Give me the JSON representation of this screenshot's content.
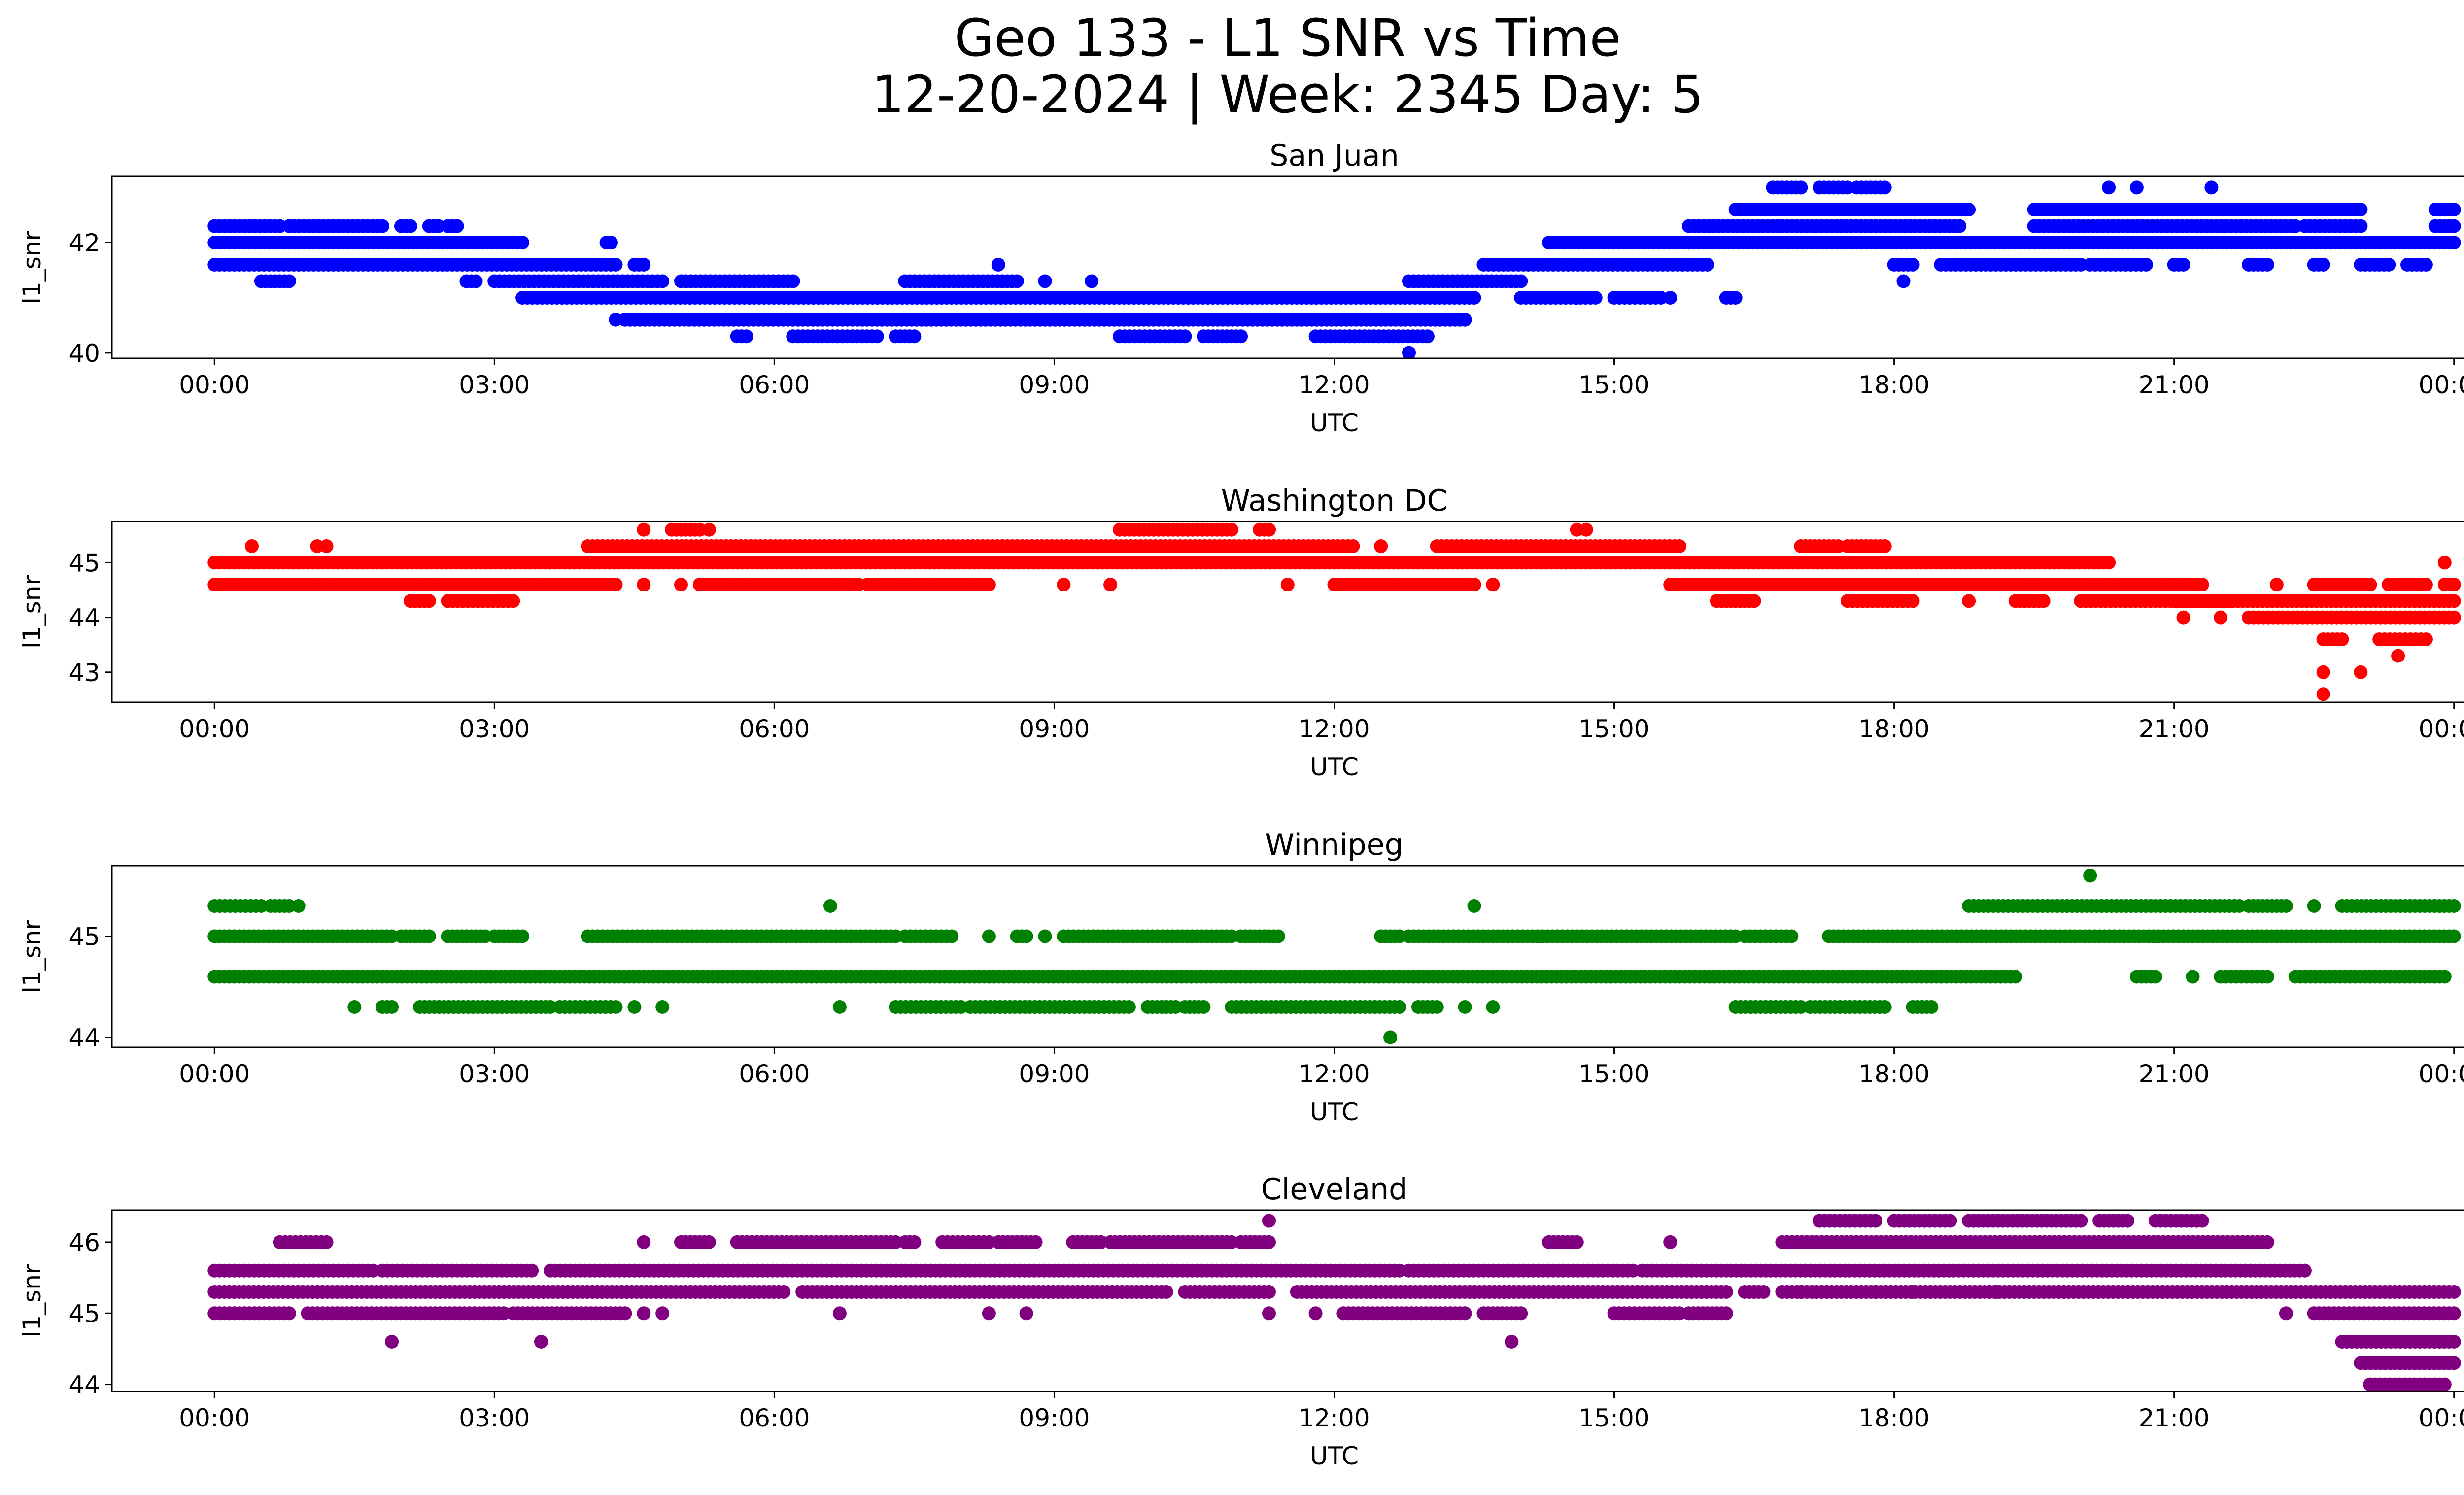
{
  "figure": {
    "title_line_1": "Geo 133 - L1 SNR vs Time",
    "title_line_2": "12-20-2024 | Week: 2345 Day: 5"
  },
  "chart_data": [
    {
      "type": "scatter",
      "title": "San Juan",
      "xlabel": "UTC",
      "ylabel": "l1_snr",
      "color": "#0000ff",
      "xlim": [
        -1.1,
        25.1
      ],
      "ylim": [
        39.9,
        43.2
      ],
      "xticks": [
        0,
        3,
        6,
        9,
        12,
        15,
        18,
        21,
        24
      ],
      "xtick_labels": [
        "00:00",
        "03:00",
        "06:00",
        "09:00",
        "12:00",
        "15:00",
        "18:00",
        "21:00",
        "00:00"
      ],
      "yticks": [
        40,
        42
      ],
      "ytick_labels": [
        "40",
        "42"
      ],
      "bands": [
        {
          "y": 42.3,
          "segments": [
            [
              0.0,
              0.7
            ],
            [
              0.8,
              1.8
            ],
            [
              2.0,
              2.1
            ],
            [
              2.3,
              2.4
            ],
            [
              2.5,
              2.6
            ]
          ]
        },
        {
          "y": 42.0,
          "segments": [
            [
              0.0,
              3.3
            ],
            [
              4.2,
              4.25
            ],
            [
              14.3,
              15.8
            ]
          ]
        },
        {
          "y": 41.6,
          "segments": [
            [
              0.0,
              4.3
            ],
            [
              4.5,
              4.6
            ],
            [
              13.6,
              16.0
            ]
          ]
        },
        {
          "y": 41.3,
          "segments": [
            [
              0.5,
              0.8
            ],
            [
              2.7,
              2.8
            ],
            [
              3.0,
              4.8
            ],
            [
              5.0,
              6.2
            ],
            [
              7.4,
              8.6
            ],
            [
              12.8,
              14.0
            ]
          ]
        },
        {
          "y": 41.0,
          "segments": [
            [
              3.3,
              13.5
            ],
            [
              14.0,
              14.8
            ],
            [
              15.0,
              15.5
            ],
            [
              16.2,
              16.3
            ]
          ]
        },
        {
          "y": 40.6,
          "segments": [
            [
              4.4,
              13.4
            ]
          ]
        },
        {
          "y": 40.3,
          "segments": [
            [
              5.6,
              5.7
            ],
            [
              6.2,
              7.1
            ],
            [
              7.3,
              7.5
            ],
            [
              9.7,
              10.4
            ],
            [
              10.6,
              11.0
            ],
            [
              11.8,
              13.0
            ]
          ]
        },
        {
          "y": 42.3,
          "segments": [
            [
              15.8,
              18.7
            ],
            [
              19.5,
              22.3
            ],
            [
              22.4,
              23.0
            ],
            [
              23.8,
              24.0
            ]
          ]
        },
        {
          "y": 42.0,
          "segments": [
            [
              15.8,
              24.0
            ]
          ]
        },
        {
          "y": 42.6,
          "segments": [
            [
              16.3,
              18.8
            ],
            [
              19.5,
              23.0
            ],
            [
              23.8,
              24.0
            ]
          ]
        },
        {
          "y": 43.0,
          "segments": [
            [
              16.7,
              17.0
            ],
            [
              17.2,
              17.5
            ],
            [
              17.6,
              17.9
            ]
          ]
        },
        {
          "y": 41.6,
          "segments": [
            [
              18.0,
              18.2
            ],
            [
              18.5,
              20.0
            ],
            [
              20.1,
              20.7
            ],
            [
              21.0,
              21.1
            ],
            [
              21.8,
              22.0
            ],
            [
              22.5,
              22.6
            ],
            [
              23.0,
              23.3
            ],
            [
              23.5,
              23.7
            ]
          ]
        }
      ],
      "points": [
        {
          "x": 8.4,
          "y": 41.6
        },
        {
          "x": 18.1,
          "y": 41.3
        },
        {
          "x": 15.6,
          "y": 41.0
        },
        {
          "x": 17.0,
          "y": 43.0
        },
        {
          "x": 20.3,
          "y": 43.0
        },
        {
          "x": 20.6,
          "y": 43.0
        },
        {
          "x": 21.4,
          "y": 43.0
        },
        {
          "x": 12.8,
          "y": 40.0
        },
        {
          "x": 4.3,
          "y": 40.6
        },
        {
          "x": 8.9,
          "y": 41.3
        },
        {
          "x": 9.4,
          "y": 41.3
        },
        {
          "x": 14.6,
          "y": 41.0
        }
      ]
    },
    {
      "type": "scatter",
      "title": "Washington DC",
      "xlabel": "UTC",
      "ylabel": "l1_snr",
      "color": "#ff0000",
      "xlim": [
        -1.1,
        25.1
      ],
      "ylim": [
        42.45,
        45.75
      ],
      "xticks": [
        0,
        3,
        6,
        9,
        12,
        15,
        18,
        21,
        24
      ],
      "xtick_labels": [
        "00:00",
        "03:00",
        "06:00",
        "09:00",
        "12:00",
        "15:00",
        "18:00",
        "21:00",
        "00:00"
      ],
      "yticks": [
        43,
        44,
        45
      ],
      "ytick_labels": [
        "43",
        "44",
        "45"
      ],
      "bands": [
        {
          "y": 45.0,
          "segments": [
            [
              0.0,
              20.3
            ]
          ]
        },
        {
          "y": 44.6,
          "segments": [
            [
              0.0,
              4.3
            ],
            [
              5.2,
              6.9
            ],
            [
              7.0,
              8.3
            ],
            [
              12.0,
              13.5
            ],
            [
              15.6,
              21.3
            ]
          ]
        },
        {
          "y": 45.3,
          "segments": [
            [
              4.0,
              12.2
            ],
            [
              13.1,
              15.7
            ],
            [
              17.0,
              17.4
            ],
            [
              17.5,
              17.9
            ]
          ]
        },
        {
          "y": 45.6,
          "segments": [
            [
              4.9,
              5.2
            ],
            [
              9.7,
              10.9
            ],
            [
              11.2,
              11.3
            ]
          ]
        },
        {
          "y": 44.3,
          "segments": [
            [
              2.1,
              2.3
            ],
            [
              2.5,
              3.2
            ],
            [
              16.1,
              16.5
            ],
            [
              17.5,
              18.2
            ],
            [
              19.3,
              19.6
            ],
            [
              20.0,
              21.6
            ]
          ]
        },
        {
          "y": 44.3,
          "segments": [
            [
              21.0,
              24.0
            ]
          ]
        },
        {
          "y": 44.0,
          "segments": [
            [
              21.8,
              24.0
            ]
          ]
        },
        {
          "y": 44.6,
          "segments": [
            [
              22.5,
              23.1
            ],
            [
              23.3,
              23.7
            ],
            [
              23.9,
              24.0
            ]
          ]
        },
        {
          "y": 43.6,
          "segments": [
            [
              22.6,
              22.8
            ],
            [
              23.2,
              23.7
            ]
          ]
        }
      ],
      "points": [
        {
          "x": 0.4,
          "y": 45.3
        },
        {
          "x": 1.1,
          "y": 45.3
        },
        {
          "x": 1.2,
          "y": 45.3
        },
        {
          "x": 4.6,
          "y": 45.6
        },
        {
          "x": 5.3,
          "y": 45.6
        },
        {
          "x": 4.6,
          "y": 44.6
        },
        {
          "x": 5.0,
          "y": 44.6
        },
        {
          "x": 9.1,
          "y": 44.6
        },
        {
          "x": 9.6,
          "y": 44.6
        },
        {
          "x": 11.5,
          "y": 44.6
        },
        {
          "x": 13.7,
          "y": 44.6
        },
        {
          "x": 14.6,
          "y": 45.6
        },
        {
          "x": 14.7,
          "y": 45.6
        },
        {
          "x": 18.8,
          "y": 44.3
        },
        {
          "x": 21.1,
          "y": 44.0
        },
        {
          "x": 21.5,
          "y": 44.0
        },
        {
          "x": 22.1,
          "y": 44.6
        },
        {
          "x": 22.6,
          "y": 43.0
        },
        {
          "x": 22.6,
          "y": 42.6
        },
        {
          "x": 23.0,
          "y": 43.0
        },
        {
          "x": 23.4,
          "y": 43.3
        },
        {
          "x": 23.9,
          "y": 45.0
        },
        {
          "x": 12.5,
          "y": 45.3
        }
      ]
    },
    {
      "type": "scatter",
      "title": "Winnipeg",
      "xlabel": "UTC",
      "ylabel": "l1_snr",
      "color": "#008000",
      "xlim": [
        -1.1,
        25.1
      ],
      "ylim": [
        43.9,
        45.7
      ],
      "xticks": [
        0,
        3,
        6,
        9,
        12,
        15,
        18,
        21,
        24
      ],
      "xtick_labels": [
        "00:00",
        "03:00",
        "06:00",
        "09:00",
        "12:00",
        "15:00",
        "18:00",
        "21:00",
        "00:00"
      ],
      "yticks": [
        44,
        45
      ],
      "ytick_labels": [
        "44",
        "45"
      ],
      "bands": [
        {
          "y": 45.3,
          "segments": [
            [
              0.0,
              0.5
            ],
            [
              0.6,
              0.8
            ],
            [
              18.8,
              21.7
            ],
            [
              21.8,
              22.2
            ],
            [
              22.8,
              24.0
            ]
          ]
        },
        {
          "y": 45.0,
          "segments": [
            [
              0.0,
              1.9
            ],
            [
              2.0,
              2.3
            ],
            [
              2.5,
              2.9
            ],
            [
              3.0,
              3.3
            ],
            [
              4.0,
              7.3
            ],
            [
              7.4,
              7.9
            ],
            [
              8.6,
              8.7
            ],
            [
              9.1,
              10.9
            ],
            [
              11.0,
              11.4
            ],
            [
              12.5,
              12.7
            ],
            [
              12.8,
              16.3
            ],
            [
              16.4,
              16.9
            ],
            [
              17.3,
              24.0
            ]
          ]
        },
        {
          "y": 44.6,
          "segments": [
            [
              0.0,
              19.3
            ],
            [
              20.6,
              20.8
            ],
            [
              21.5,
              22.0
            ],
            [
              22.3,
              23.9
            ]
          ]
        },
        {
          "y": 44.3,
          "segments": [
            [
              1.8,
              1.9
            ],
            [
              2.2,
              3.6
            ],
            [
              3.7,
              4.3
            ],
            [
              7.3,
              8.0
            ],
            [
              8.1,
              9.8
            ],
            [
              10.0,
              10.3
            ],
            [
              10.4,
              10.6
            ],
            [
              10.9,
              12.7
            ],
            [
              12.9,
              13.1
            ],
            [
              16.3,
              17.0
            ],
            [
              17.1,
              17.9
            ],
            [
              18.2,
              18.4
            ]
          ]
        }
      ],
      "points": [
        {
          "x": 0.9,
          "y": 45.3
        },
        {
          "x": 1.5,
          "y": 44.3
        },
        {
          "x": 4.5,
          "y": 44.3
        },
        {
          "x": 4.8,
          "y": 44.3
        },
        {
          "x": 6.7,
          "y": 44.3
        },
        {
          "x": 6.6,
          "y": 45.3
        },
        {
          "x": 8.3,
          "y": 45.0
        },
        {
          "x": 8.9,
          "y": 45.0
        },
        {
          "x": 13.5,
          "y": 45.3
        },
        {
          "x": 13.4,
          "y": 44.3
        },
        {
          "x": 13.7,
          "y": 44.3
        },
        {
          "x": 12.6,
          "y": 44.0
        },
        {
          "x": 20.1,
          "y": 45.6
        },
        {
          "x": 22.5,
          "y": 45.3
        },
        {
          "x": 21.2,
          "y": 44.6
        }
      ]
    },
    {
      "type": "scatter",
      "title": "Cleveland",
      "xlabel": "UTC",
      "ylabel": "l1_snr",
      "color": "#800080",
      "xlim": [
        -1.1,
        25.1
      ],
      "ylim": [
        43.9,
        46.45
      ],
      "xticks": [
        0,
        3,
        6,
        9,
        12,
        15,
        18,
        21,
        24
      ],
      "xtick_labels": [
        "00:00",
        "03:00",
        "06:00",
        "09:00",
        "12:00",
        "15:00",
        "18:00",
        "21:00",
        "00:00"
      ],
      "yticks": [
        44,
        45,
        46
      ],
      "ytick_labels": [
        "44",
        "45",
        "46"
      ],
      "bands": [
        {
          "y": 45.6,
          "segments": [
            [
              0.0,
              1.7
            ],
            [
              1.8,
              3.4
            ],
            [
              3.6,
              12.7
            ],
            [
              12.8,
              15.2
            ],
            [
              15.3,
              22.4
            ]
          ]
        },
        {
          "y": 45.3,
          "segments": [
            [
              0.0,
              6.1
            ],
            [
              6.3,
              10.2
            ],
            [
              10.4,
              11.3
            ],
            [
              11.6,
              16.2
            ],
            [
              16.4,
              16.6
            ],
            [
              16.8,
              24.0
            ]
          ]
        },
        {
          "y": 45.0,
          "segments": [
            [
              0.0,
              0.8
            ],
            [
              1.0,
              3.1
            ],
            [
              3.2,
              4.4
            ],
            [
              12.1,
              13.4
            ],
            [
              13.6,
              14.0
            ],
            [
              15.0,
              15.7
            ],
            [
              15.8,
              16.2
            ]
          ]
        },
        {
          "y": 46.0,
          "segments": [
            [
              0.7,
              1.2
            ],
            [
              5.0,
              5.3
            ],
            [
              5.6,
              7.3
            ],
            [
              7.4,
              7.5
            ],
            [
              7.8,
              8.3
            ],
            [
              8.4,
              8.8
            ],
            [
              9.2,
              9.5
            ],
            [
              9.6,
              10.9
            ],
            [
              11.0,
              11.3
            ],
            [
              14.3,
              14.6
            ],
            [
              16.8,
              22.0
            ]
          ]
        },
        {
          "y": 46.3,
          "segments": [
            [
              17.2,
              17.8
            ],
            [
              18.0,
              18.6
            ],
            [
              18.8,
              20.0
            ],
            [
              20.2,
              20.5
            ],
            [
              20.8,
              21.3
            ]
          ]
        },
        {
          "y": 45.0,
          "segments": [
            [
              22.5,
              24.0
            ]
          ]
        },
        {
          "y": 44.6,
          "segments": [
            [
              22.8,
              24.0
            ]
          ]
        },
        {
          "y": 44.3,
          "segments": [
            [
              23.0,
              24.0
            ]
          ]
        },
        {
          "y": 44.0,
          "segments": [
            [
              23.1,
              23.9
            ]
          ]
        }
      ],
      "points": [
        {
          "x": 1.9,
          "y": 44.6
        },
        {
          "x": 3.5,
          "y": 44.6
        },
        {
          "x": 4.6,
          "y": 45.0
        },
        {
          "x": 4.8,
          "y": 45.0
        },
        {
          "x": 4.6,
          "y": 46.0
        },
        {
          "x": 6.7,
          "y": 45.0
        },
        {
          "x": 8.7,
          "y": 45.0
        },
        {
          "x": 8.3,
          "y": 45.0
        },
        {
          "x": 11.3,
          "y": 45.0
        },
        {
          "x": 11.8,
          "y": 45.0
        },
        {
          "x": 11.3,
          "y": 46.3
        },
        {
          "x": 13.9,
          "y": 44.6
        },
        {
          "x": 15.6,
          "y": 46.0
        },
        {
          "x": 17.0,
          "y": 45.3
        },
        {
          "x": 17.8,
          "y": 45.3
        },
        {
          "x": 18.2,
          "y": 45.3
        },
        {
          "x": 19.1,
          "y": 45.3
        },
        {
          "x": 22.2,
          "y": 45.0
        },
        {
          "x": 22.4,
          "y": 45.6
        }
      ]
    }
  ]
}
